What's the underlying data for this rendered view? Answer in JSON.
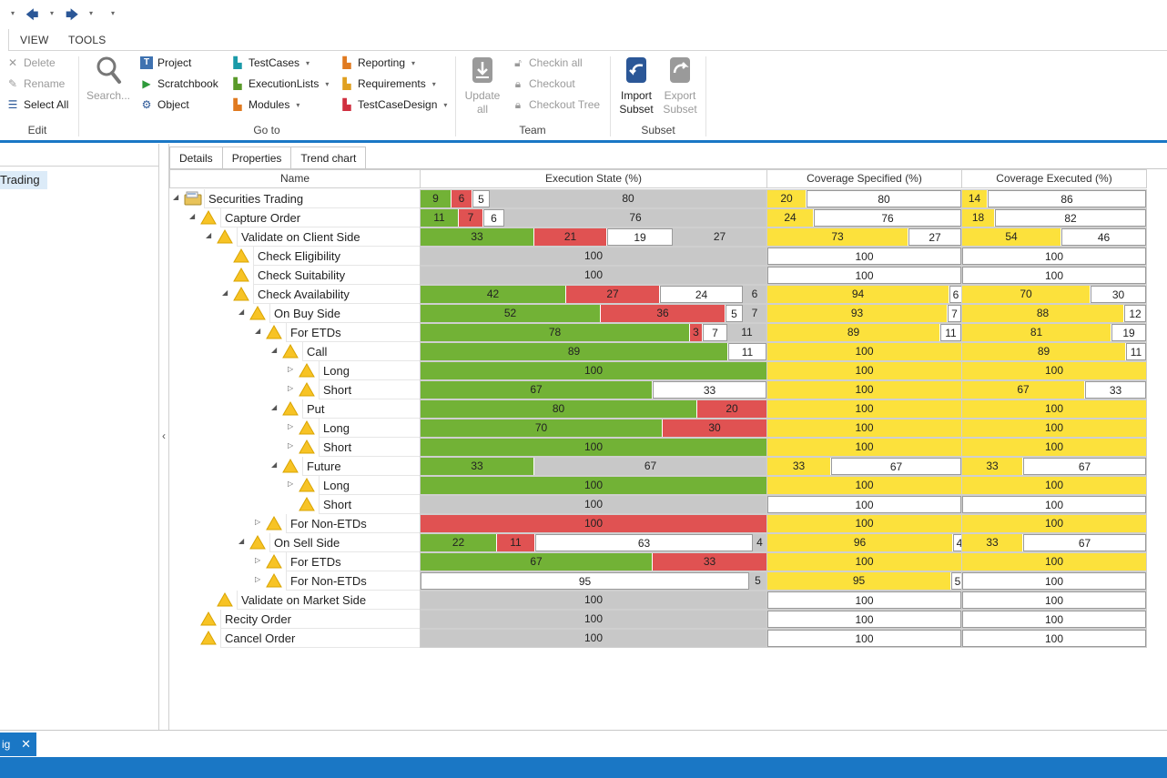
{
  "ribbon_tabs": [
    "VIEW",
    "TOOLS"
  ],
  "edit_group": {
    "label": "Edit",
    "items": [
      {
        "label": "Delete",
        "icon": "x-icon",
        "disabled": true
      },
      {
        "label": "Rename",
        "icon": "rename-icon",
        "disabled": true
      },
      {
        "label": "Select All",
        "icon": "select-all-icon",
        "disabled": false
      }
    ]
  },
  "search_button": {
    "label": "Search...",
    "icon": "magnifier-icon"
  },
  "goto_group": {
    "label": "Go to",
    "col1": [
      {
        "label": "Project",
        "icon": "project-icon"
      },
      {
        "label": "Scratchbook",
        "icon": "play-icon"
      },
      {
        "label": "Object",
        "icon": "object-icon"
      }
    ],
    "col2": [
      {
        "label": "TestCases",
        "icon": "testcases-icon"
      },
      {
        "label": "ExecutionLists",
        "icon": "executionlists-icon"
      },
      {
        "label": "Modules",
        "icon": "modules-icon"
      }
    ],
    "col3": [
      {
        "label": "Reporting",
        "icon": "reporting-icon"
      },
      {
        "label": "Requirements",
        "icon": "requirements-icon"
      },
      {
        "label": "TestCaseDesign",
        "icon": "testcasedesign-icon"
      }
    ]
  },
  "team_group": {
    "label": "Team",
    "update_all": "Update all",
    "items": [
      {
        "label": "Checkin all",
        "icon": "unlock-icon"
      },
      {
        "label": "Checkout",
        "icon": "lock-icon"
      },
      {
        "label": "Checkout Tree",
        "icon": "lock-tree-icon"
      }
    ]
  },
  "subset_group": {
    "label": "Subset",
    "import": "Import Subset",
    "export": "Export Subset"
  },
  "left_pane": {
    "selected_item": "Trading"
  },
  "detail_tabs": [
    "Details",
    "Properties",
    "Trend chart"
  ],
  "columns": {
    "name": "Name",
    "execution": "Execution State (%)",
    "coverage_specified": "Coverage Specified (%)",
    "coverage_executed": "Coverage Executed (%)"
  },
  "colors": {
    "passed": "#72b236",
    "failed": "#e05252",
    "no_result": "#ffffff",
    "not_executed": "#c8c8c8",
    "covered": "#fce13c",
    "accent": "#1a77c5"
  },
  "rows": [
    {
      "name": "Securities Trading",
      "icon": "folder-icon",
      "toggle": "expanded",
      "exec": [
        [
          "green",
          9
        ],
        [
          "red",
          6
        ],
        [
          "white",
          5
        ],
        [
          "gray",
          80
        ]
      ],
      "spec": [
        [
          "yellow",
          20
        ],
        [
          "white",
          80
        ]
      ],
      "execd": [
        [
          "yellow",
          14
        ],
        [
          "white",
          86
        ]
      ]
    },
    {
      "name": "Capture Order",
      "icon": "warning-icon",
      "toggle": "expanded",
      "exec": [
        [
          "green",
          11
        ],
        [
          "red",
          7
        ],
        [
          "white",
          6
        ],
        [
          "gray",
          76
        ]
      ],
      "spec": [
        [
          "yellow",
          24
        ],
        [
          "white",
          76
        ]
      ],
      "execd": [
        [
          "yellow",
          18
        ],
        [
          "white",
          82
        ]
      ]
    },
    {
      "name": "Validate on Client Side",
      "icon": "warning-icon",
      "toggle": "expanded",
      "exec": [
        [
          "green",
          33
        ],
        [
          "red",
          21
        ],
        [
          "white",
          19
        ],
        [
          "gray",
          27
        ]
      ],
      "spec": [
        [
          "yellow",
          73
        ],
        [
          "white",
          27
        ]
      ],
      "execd": [
        [
          "yellow",
          54
        ],
        [
          "white",
          46
        ]
      ]
    },
    {
      "name": "Check Eligibility",
      "icon": "warning-icon",
      "toggle": "none",
      "exec": [
        [
          "gray",
          100
        ]
      ],
      "spec": [
        [
          "white",
          100
        ]
      ],
      "execd": [
        [
          "white",
          100
        ]
      ]
    },
    {
      "name": "Check Suitability",
      "icon": "warning-icon",
      "toggle": "none",
      "exec": [
        [
          "gray",
          100
        ]
      ],
      "spec": [
        [
          "white",
          100
        ]
      ],
      "execd": [
        [
          "white",
          100
        ]
      ]
    },
    {
      "name": "Check Availability",
      "icon": "warning-icon",
      "toggle": "expanded",
      "exec": [
        [
          "green",
          42
        ],
        [
          "red",
          27
        ],
        [
          "white",
          24
        ],
        [
          "gray",
          6
        ]
      ],
      "spec": [
        [
          "yellow",
          94
        ],
        [
          "white",
          6
        ]
      ],
      "execd": [
        [
          "yellow",
          70
        ],
        [
          "white",
          30
        ]
      ]
    },
    {
      "name": "On Buy Side",
      "icon": "warning-icon",
      "toggle": "expanded",
      "exec": [
        [
          "green",
          52
        ],
        [
          "red",
          36
        ],
        [
          "white",
          5
        ],
        [
          "gray",
          7
        ]
      ],
      "spec": [
        [
          "yellow",
          93
        ],
        [
          "white",
          7
        ]
      ],
      "execd": [
        [
          "yellow",
          88
        ],
        [
          "white",
          12
        ]
      ]
    },
    {
      "name": "For ETDs",
      "icon": "warning-icon",
      "toggle": "expanded",
      "exec": [
        [
          "green",
          78
        ],
        [
          "red",
          3
        ],
        [
          "white",
          7
        ],
        [
          "gray",
          11
        ]
      ],
      "spec": [
        [
          "yellow",
          89
        ],
        [
          "white",
          11
        ]
      ],
      "execd": [
        [
          "yellow",
          81
        ],
        [
          "white",
          19
        ]
      ]
    },
    {
      "name": "Call",
      "icon": "warning-icon",
      "toggle": "expanded",
      "exec": [
        [
          "green",
          89
        ],
        [
          "white",
          11
        ]
      ],
      "spec": [
        [
          "yellow",
          100
        ]
      ],
      "execd": [
        [
          "yellow",
          89
        ],
        [
          "white",
          11
        ]
      ]
    },
    {
      "name": "Long",
      "icon": "warning-icon",
      "toggle": "collapsed",
      "exec": [
        [
          "green",
          100
        ]
      ],
      "spec": [
        [
          "yellow",
          100
        ]
      ],
      "execd": [
        [
          "yellow",
          100
        ]
      ]
    },
    {
      "name": "Short",
      "icon": "warning-icon",
      "toggle": "collapsed",
      "exec": [
        [
          "green",
          67
        ],
        [
          "white",
          33
        ]
      ],
      "spec": [
        [
          "yellow",
          100
        ]
      ],
      "execd": [
        [
          "yellow",
          67
        ],
        [
          "white",
          33
        ]
      ]
    },
    {
      "name": "Put",
      "icon": "warning-icon",
      "toggle": "expanded",
      "exec": [
        [
          "green",
          80
        ],
        [
          "red",
          20
        ]
      ],
      "spec": [
        [
          "yellow",
          100
        ]
      ],
      "execd": [
        [
          "yellow",
          100
        ]
      ]
    },
    {
      "name": "Long",
      "icon": "warning-icon",
      "toggle": "collapsed",
      "exec": [
        [
          "green",
          70
        ],
        [
          "red",
          30
        ]
      ],
      "spec": [
        [
          "yellow",
          100
        ]
      ],
      "execd": [
        [
          "yellow",
          100
        ]
      ]
    },
    {
      "name": "Short",
      "icon": "warning-icon",
      "toggle": "collapsed",
      "exec": [
        [
          "green",
          100
        ]
      ],
      "spec": [
        [
          "yellow",
          100
        ]
      ],
      "execd": [
        [
          "yellow",
          100
        ]
      ]
    },
    {
      "name": "Future",
      "icon": "warning-icon",
      "toggle": "expanded",
      "exec": [
        [
          "green",
          33
        ],
        [
          "gray",
          67
        ]
      ],
      "spec": [
        [
          "yellow",
          33
        ],
        [
          "white",
          67
        ]
      ],
      "execd": [
        [
          "yellow",
          33
        ],
        [
          "white",
          67
        ]
      ]
    },
    {
      "name": "Long",
      "icon": "warning-icon",
      "toggle": "collapsed",
      "exec": [
        [
          "green",
          100
        ]
      ],
      "spec": [
        [
          "yellow",
          100
        ]
      ],
      "execd": [
        [
          "yellow",
          100
        ]
      ]
    },
    {
      "name": "Short",
      "icon": "warning-icon",
      "toggle": "none",
      "exec": [
        [
          "gray",
          100
        ]
      ],
      "spec": [
        [
          "white",
          100
        ]
      ],
      "execd": [
        [
          "white",
          100
        ]
      ]
    },
    {
      "name": "For Non-ETDs",
      "icon": "warning-icon",
      "toggle": "collapsed",
      "exec": [
        [
          "red",
          100
        ]
      ],
      "spec": [
        [
          "yellow",
          100
        ]
      ],
      "execd": [
        [
          "yellow",
          100
        ]
      ]
    },
    {
      "name": "On Sell Side",
      "icon": "warning-icon",
      "toggle": "expanded",
      "exec": [
        [
          "green",
          22
        ],
        [
          "red",
          11
        ],
        [
          "white",
          63
        ],
        [
          "gray",
          4
        ]
      ],
      "spec": [
        [
          "yellow",
          96
        ],
        [
          "white",
          4
        ]
      ],
      "execd": [
        [
          "yellow",
          33
        ],
        [
          "white",
          67
        ]
      ]
    },
    {
      "name": "For ETDs",
      "icon": "warning-icon",
      "toggle": "collapsed",
      "exec": [
        [
          "green",
          67
        ],
        [
          "red",
          33
        ]
      ],
      "spec": [
        [
          "yellow",
          100
        ]
      ],
      "execd": [
        [
          "yellow",
          100
        ]
      ]
    },
    {
      "name": "For Non-ETDs",
      "icon": "warning-icon",
      "toggle": "collapsed",
      "exec": [
        [
          "white",
          95
        ],
        [
          "gray",
          5
        ]
      ],
      "spec": [
        [
          "yellow",
          95
        ],
        [
          "white",
          5
        ]
      ],
      "execd": [
        [
          "white",
          100
        ]
      ]
    },
    {
      "name": "Validate on Market Side",
      "icon": "warning-icon",
      "toggle": "none",
      "exec": [
        [
          "gray",
          100
        ]
      ],
      "spec": [
        [
          "white",
          100
        ]
      ],
      "execd": [
        [
          "white",
          100
        ]
      ]
    },
    {
      "name": "Recity Order",
      "icon": "warning-icon",
      "toggle": "none",
      "exec": [
        [
          "gray",
          100
        ]
      ],
      "spec": [
        [
          "white",
          100
        ]
      ],
      "execd": [
        [
          "white",
          100
        ]
      ]
    },
    {
      "name": "Cancel Order",
      "icon": "warning-icon",
      "toggle": "none",
      "exec": [
        [
          "gray",
          100
        ]
      ],
      "spec": [
        [
          "white",
          100
        ]
      ],
      "execd": [
        [
          "white",
          100
        ]
      ]
    }
  ],
  "bottom_tab": {
    "label": "ig",
    "close": "✕"
  }
}
